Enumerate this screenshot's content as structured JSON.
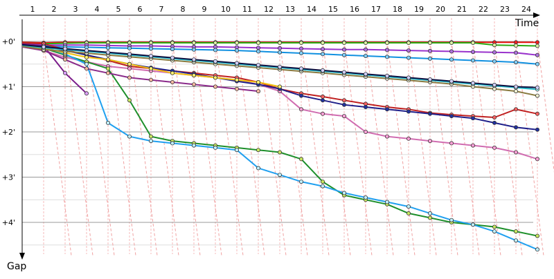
{
  "chart_data": {
    "type": "line",
    "xlabel": "Time",
    "ylabel": "Gap",
    "x_tick_labels": [
      "1",
      "2",
      "3",
      "4",
      "5",
      "6",
      "7",
      "8",
      "9",
      "10",
      "11",
      "12",
      "13",
      "14",
      "15",
      "16",
      "17",
      "18",
      "19",
      "20",
      "21",
      "22",
      "23",
      "24"
    ],
    "y_tick_labels": [
      "+0'",
      "+1'",
      "+2'",
      "+3'",
      "+4'"
    ],
    "x_range": [
      0,
      25
    ],
    "y_range_minutes": [
      0,
      4.7
    ],
    "grid": true,
    "legend": "none",
    "series": [
      {
        "color": "#e8100c",
        "marker": "#ff2020",
        "values": [
          0.03,
          0.02,
          0.02,
          0.02,
          0.02,
          0.02,
          0.02,
          0.02,
          0.02,
          0.02,
          0.02,
          0.02,
          0.02,
          0.02,
          0.02,
          0.02,
          0.02,
          0.02,
          0.02,
          0.02,
          0.02,
          0.02,
          0.02,
          0.02
        ]
      },
      {
        "color": "#2aaa12",
        "marker": "#d8f0a0",
        "values": [
          0.05,
          0.04,
          0.03,
          0.03,
          0.03,
          0.03,
          0.03,
          0.03,
          0.03,
          0.03,
          0.03,
          0.03,
          0.03,
          0.03,
          0.03,
          0.03,
          0.03,
          0.03,
          0.03,
          0.03,
          0.03,
          0.08,
          0.09,
          0.1
        ]
      },
      {
        "color": "#9932cc",
        "marker": "#b070e0",
        "values": [
          0.08,
          0.08,
          0.08,
          0.09,
          0.1,
          0.1,
          0.11,
          0.12,
          0.12,
          0.13,
          0.14,
          0.15,
          0.16,
          0.17,
          0.18,
          0.18,
          0.19,
          0.2,
          0.21,
          0.22,
          0.23,
          0.24,
          0.25,
          0.3
        ]
      },
      {
        "color": "#1090e0",
        "marker": "#80d0ff",
        "values": [
          0.1,
          0.12,
          0.13,
          0.14,
          0.15,
          0.16,
          0.17,
          0.18,
          0.19,
          0.2,
          0.22,
          0.24,
          0.26,
          0.28,
          0.3,
          0.32,
          0.34,
          0.36,
          0.38,
          0.4,
          0.42,
          0.44,
          0.46,
          0.5
        ]
      },
      {
        "color": "#c02020",
        "marker": "#ff6060",
        "values": [
          0.05,
          0.18,
          0.3,
          0.42,
          0.55,
          0.6,
          0.65,
          0.7,
          0.75,
          0.8,
          0.9,
          1.05,
          1.15,
          1.22,
          1.3,
          1.38,
          1.45,
          1.5,
          1.58,
          1.62,
          1.65,
          1.68,
          1.5,
          1.6
        ]
      },
      {
        "color": "#d06cb0",
        "marker": "#ffa0d8",
        "values": [
          0.2,
          0.35,
          0.45,
          0.55,
          0.6,
          0.65,
          0.7,
          0.75,
          0.8,
          0.85,
          0.95,
          1.1,
          1.5,
          1.6,
          1.65,
          2.0,
          2.1,
          2.15,
          2.2,
          2.25,
          2.3,
          2.35,
          2.45,
          2.6
        ]
      },
      {
        "color": "#20208a",
        "marker": "#2030a0",
        "values": [
          0.1,
          0.2,
          0.3,
          0.4,
          0.5,
          0.58,
          0.65,
          0.72,
          0.8,
          0.88,
          0.95,
          1.05,
          1.2,
          1.3,
          1.4,
          1.45,
          1.5,
          1.55,
          1.6,
          1.65,
          1.7,
          1.8,
          1.9,
          1.95
        ]
      },
      {
        "color": "#1d8f2a",
        "marker": "#c8e860",
        "values": [
          0.15,
          0.3,
          0.45,
          0.6,
          1.3,
          2.1,
          2.2,
          2.25,
          2.3,
          2.35,
          2.4,
          2.45,
          2.6,
          3.1,
          3.4,
          3.5,
          3.6,
          3.8,
          3.9,
          4.0,
          4.05,
          4.1,
          4.2,
          4.3
        ]
      },
      {
        "color": "#20a0f0",
        "marker": "#c0f0ff",
        "values": [
          0.12,
          0.28,
          0.5,
          1.8,
          2.1,
          2.2,
          2.25,
          2.3,
          2.35,
          2.4,
          2.8,
          2.95,
          3.1,
          3.2,
          3.35,
          3.45,
          3.55,
          3.65,
          3.8,
          3.95,
          4.05,
          4.2,
          4.4,
          4.6
        ]
      },
      {
        "color": "#7a1a8a",
        "marker": "#e0a0ff",
        "values": [
          0.1,
          0.7,
          1.15
        ]
      },
      {
        "color": "#8a2a8a",
        "marker": "#f8b8a0",
        "values": [
          0.2,
          0.4,
          0.6,
          0.7,
          0.8,
          0.85,
          0.9,
          0.95,
          1.0,
          1.05,
          1.1
        ]
      },
      {
        "color": "#f0c010",
        "marker": "#fff070",
        "values": [
          0.15,
          0.25,
          0.35,
          0.4,
          0.5,
          0.6,
          0.7,
          0.75,
          0.8,
          0.85,
          0.9,
          1.0
        ]
      },
      {
        "color": "#8a7a40",
        "marker": "#f0f0d0",
        "values": [
          0.18,
          0.22,
          0.26,
          0.3,
          0.34,
          0.38,
          0.42,
          0.46,
          0.5,
          0.54,
          0.58,
          0.62,
          0.66,
          0.7,
          0.74,
          0.78,
          0.82,
          0.86,
          0.9,
          0.94,
          1.0,
          1.05,
          1.1,
          1.2
        ]
      },
      {
        "color": "#20b8c8",
        "marker": "#b0f8f8",
        "values": [
          0.14,
          0.18,
          0.22,
          0.26,
          0.3,
          0.34,
          0.38,
          0.42,
          0.46,
          0.5,
          0.54,
          0.58,
          0.62,
          0.66,
          0.7,
          0.74,
          0.78,
          0.82,
          0.86,
          0.9,
          0.94,
          0.98,
          1.02,
          1.06
        ]
      },
      {
        "color": "#101040",
        "marker": "#d0d0ff",
        "values": [
          0.12,
          0.16,
          0.2,
          0.24,
          0.28,
          0.32,
          0.36,
          0.4,
          0.44,
          0.48,
          0.52,
          0.56,
          0.6,
          0.64,
          0.68,
          0.72,
          0.76,
          0.8,
          0.84,
          0.88,
          0.92,
          0.96,
          1.0,
          1.02
        ]
      }
    ]
  }
}
